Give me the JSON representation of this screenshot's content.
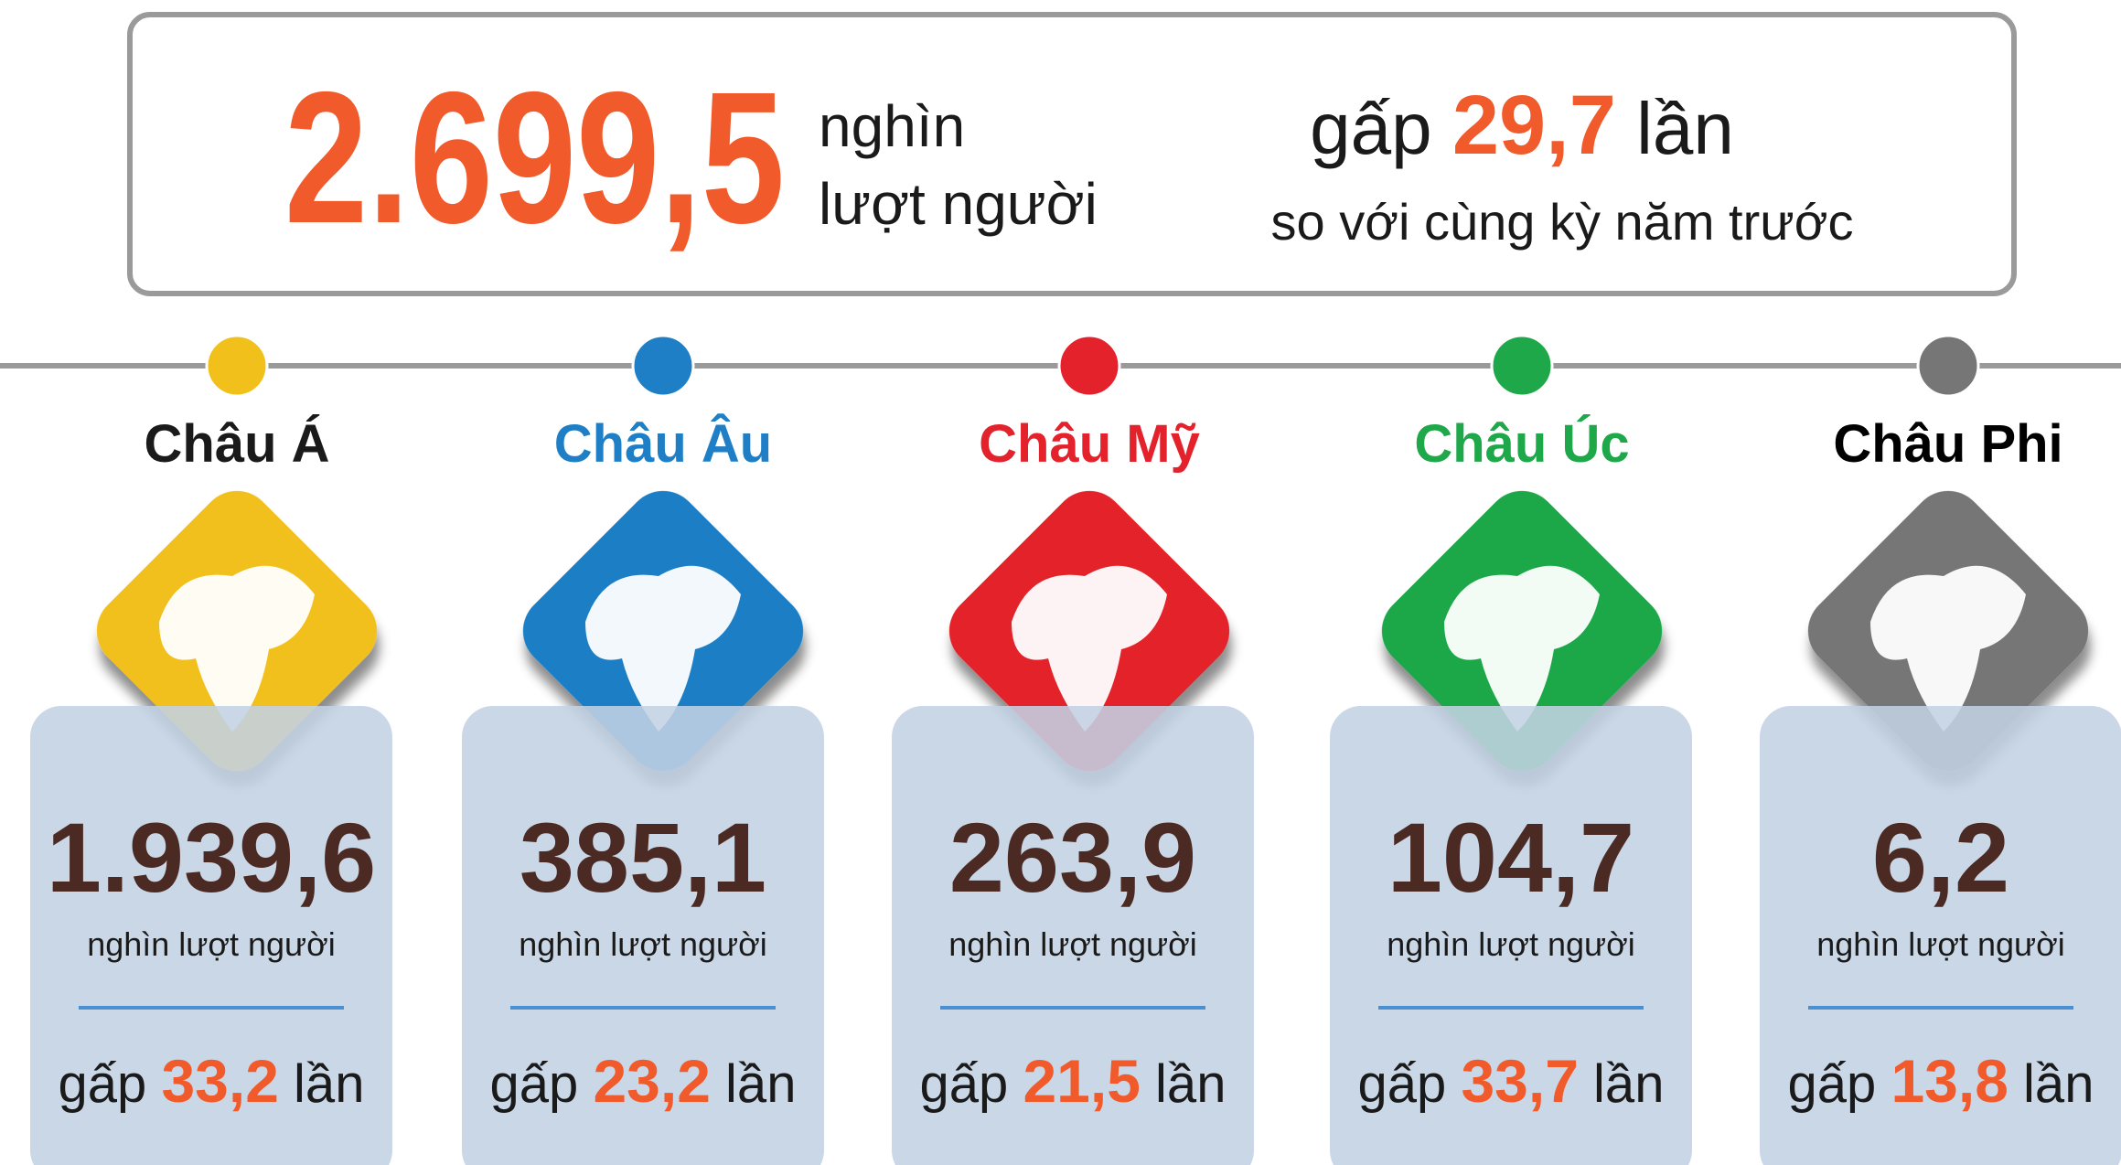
{
  "summary": {
    "value": "2.699,5",
    "unit_line1": "nghìn",
    "unit_line2": "lượt người",
    "prefix": "gấp",
    "ratio": "29,7",
    "suffix": "lần",
    "note": "so với cùng kỳ năm trước"
  },
  "continents": [
    {
      "name": "Châu Á",
      "name_color": "#1a1a1a",
      "color": "#f2c01b",
      "value": "1.939,6",
      "unit": "nghìn lượt người",
      "prefix": "gấp",
      "ratio": "33,2",
      "suffix": "lần"
    },
    {
      "name": "Châu Âu",
      "name_color": "#1e7fc6",
      "color": "#1e7fc6",
      "value": "385,1",
      "unit": "nghìn lượt người",
      "prefix": "gấp",
      "ratio": "23,2",
      "suffix": "lần"
    },
    {
      "name": "Châu Mỹ",
      "name_color": "#e3222b",
      "color": "#e3222b",
      "value": "263,9",
      "unit": "nghìn lượt người",
      "prefix": "gấp",
      "ratio": "21,5",
      "suffix": "lần"
    },
    {
      "name": "Châu Úc",
      "name_color": "#1fa84a",
      "color": "#1fa84a",
      "value": "104,7",
      "unit": "nghìn lượt người",
      "prefix": "gấp",
      "ratio": "33,7",
      "suffix": "lần"
    },
    {
      "name": "Châu Phi",
      "name_color": "#000000",
      "color": "#767676",
      "value": "6,2",
      "unit": "nghìn lượt người",
      "prefix": "gấp",
      "ratio": "13,8",
      "suffix": "lần"
    }
  ]
}
